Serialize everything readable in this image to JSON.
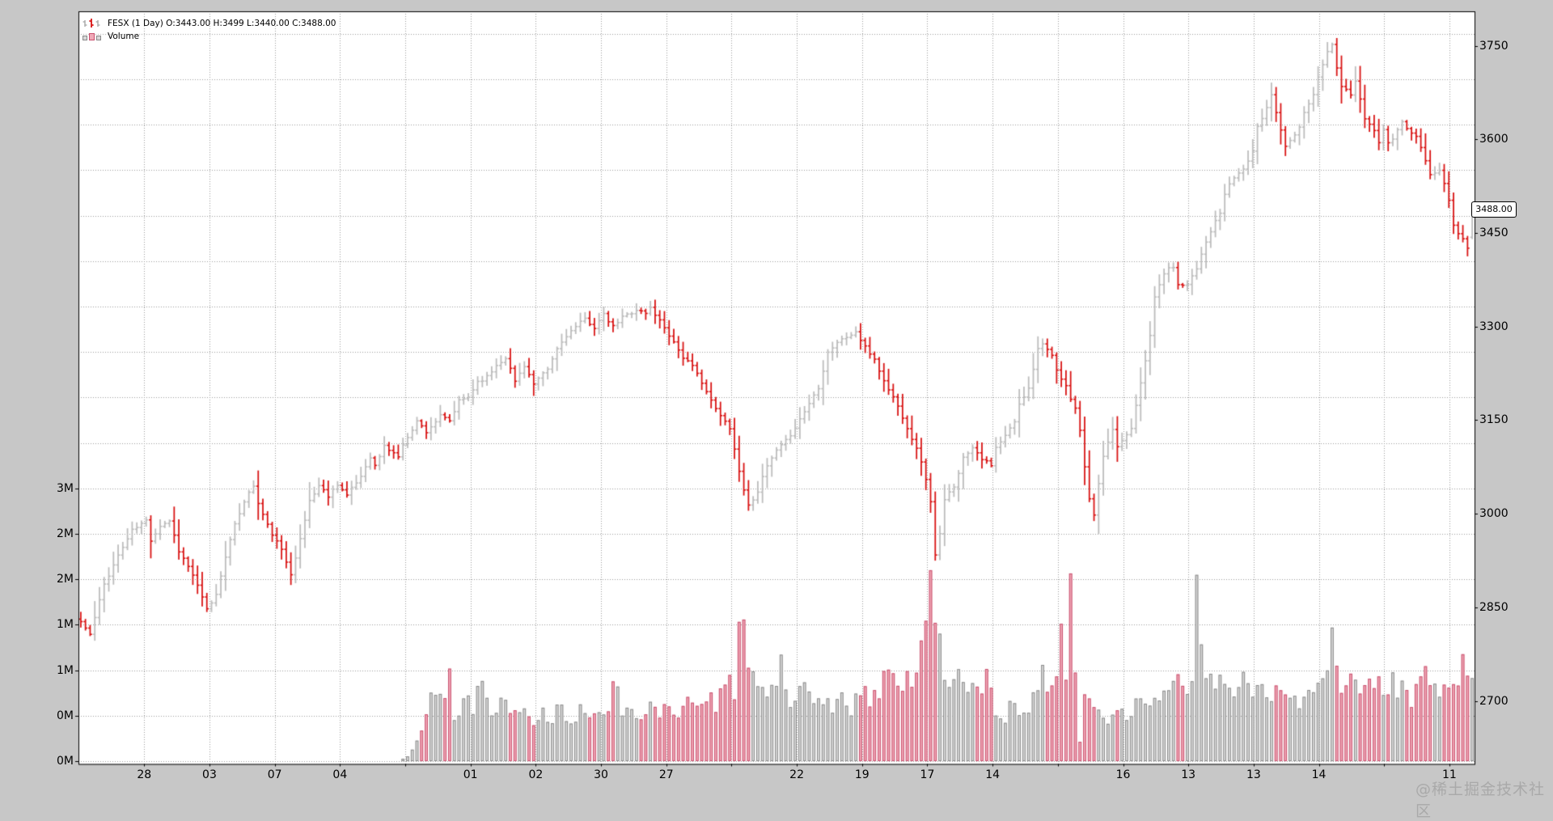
{
  "legend": {
    "series1": "FESX (1 Day) O:3443.00 H:3499 L:3440.00 C:3488.00",
    "series2": "Volume"
  },
  "price_label": "3488.00",
  "watermark": "@稀土掘金技术社区",
  "colors": {
    "page_bg": "#c7c7c7",
    "plot_bg": "#ffffff",
    "plot_border": "#000000",
    "grid": "#9b9b9b",
    "up_bar": "#bdbdbd",
    "down_bar": "#d91414",
    "vol_up_fill": "#d8d8d8",
    "vol_up_stroke": "#8a8a8a",
    "vol_down_fill": "#f0a9b7",
    "vol_down_stroke": "#c9506e",
    "text": "#000000",
    "watermark_text": "#a9a9a9"
  },
  "chart_data": {
    "type": "candlestick",
    "symbol": "FESX",
    "interval": "1 Day",
    "legend_ohlc": {
      "open": 3443.0,
      "high": 3499,
      "low": 3440.0,
      "close": 3488.0
    },
    "last_candle": {
      "open": 3443,
      "high": 3499,
      "low": 3440,
      "close": 3488
    },
    "n_candles": 299,
    "price_axis": {
      "side": "right",
      "ticks": [
        3750,
        3600,
        3450,
        3300,
        3150,
        3000,
        2850,
        2700
      ],
      "current_price": 3488.0
    },
    "volume_axis": {
      "side": "left",
      "values_M": [
        0,
        0.5,
        1,
        1.5,
        2,
        2.5,
        3
      ],
      "tick_labels": [
        "0M",
        "0M",
        "1M",
        "1M",
        "2M",
        "2M",
        "3M"
      ]
    },
    "x_axis": {
      "labels": [
        "28",
        "03",
        "07",
        "04",
        "",
        "01",
        "02",
        "30",
        "27",
        "",
        "22",
        "19",
        "17",
        "14",
        "",
        "16",
        "13",
        "13",
        "14",
        "",
        "11"
      ]
    },
    "close_keypoints": [
      [
        0,
        2827
      ],
      [
        2,
        2806
      ],
      [
        5,
        2887
      ],
      [
        8,
        2933
      ],
      [
        11,
        2973
      ],
      [
        14,
        2989
      ],
      [
        15,
        2958
      ],
      [
        17,
        2981
      ],
      [
        19,
        2989
      ],
      [
        21,
        2941
      ],
      [
        24,
        2902
      ],
      [
        27,
        2846
      ],
      [
        29,
        2870
      ],
      [
        31,
        2933
      ],
      [
        33,
        2981
      ],
      [
        35,
        3021
      ],
      [
        37,
        3045
      ],
      [
        38,
        3016
      ],
      [
        40,
        2981
      ],
      [
        43,
        2941
      ],
      [
        45,
        2905
      ],
      [
        47,
        2958
      ],
      [
        49,
        3021
      ],
      [
        51,
        3045
      ],
      [
        53,
        3029
      ],
      [
        55,
        3048
      ],
      [
        57,
        3029
      ],
      [
        60,
        3060
      ],
      [
        62,
        3092
      ],
      [
        63,
        3076
      ],
      [
        65,
        3108
      ],
      [
        68,
        3092
      ],
      [
        70,
        3124
      ],
      [
        72,
        3148
      ],
      [
        74,
        3132
      ],
      [
        77,
        3156
      ],
      [
        79,
        3148
      ],
      [
        81,
        3180
      ],
      [
        83,
        3187
      ],
      [
        85,
        3212
      ],
      [
        87,
        3219
      ],
      [
        89,
        3238
      ],
      [
        91,
        3251
      ],
      [
        93,
        3212
      ],
      [
        95,
        3238
      ],
      [
        97,
        3207
      ],
      [
        100,
        3231
      ],
      [
        102,
        3264
      ],
      [
        104,
        3286
      ],
      [
        106,
        3299
      ],
      [
        108,
        3312
      ],
      [
        110,
        3299
      ],
      [
        112,
        3318
      ],
      [
        114,
        3299
      ],
      [
        116,
        3315
      ],
      [
        119,
        3327
      ],
      [
        121,
        3321
      ],
      [
        122,
        3330
      ],
      [
        125,
        3299
      ],
      [
        127,
        3275
      ],
      [
        129,
        3251
      ],
      [
        131,
        3235
      ],
      [
        133,
        3212
      ],
      [
        135,
        3180
      ],
      [
        137,
        3156
      ],
      [
        139,
        3139
      ],
      [
        141,
        3068
      ],
      [
        143,
        3012
      ],
      [
        145,
        3037
      ],
      [
        147,
        3076
      ],
      [
        149,
        3100
      ],
      [
        151,
        3116
      ],
      [
        153,
        3139
      ],
      [
        155,
        3164
      ],
      [
        158,
        3203
      ],
      [
        160,
        3259
      ],
      [
        162,
        3275
      ],
      [
        164,
        3283
      ],
      [
        166,
        3291
      ],
      [
        168,
        3266
      ],
      [
        170,
        3248
      ],
      [
        172,
        3212
      ],
      [
        174,
        3187
      ],
      [
        176,
        3156
      ],
      [
        178,
        3121
      ],
      [
        180,
        3085
      ],
      [
        182,
        3021
      ],
      [
        183,
        2933
      ],
      [
        184,
        2966
      ],
      [
        185,
        3021
      ],
      [
        187,
        3045
      ],
      [
        189,
        3089
      ],
      [
        191,
        3108
      ],
      [
        193,
        3089
      ],
      [
        195,
        3076
      ],
      [
        196,
        3105
      ],
      [
        198,
        3124
      ],
      [
        200,
        3148
      ],
      [
        201,
        3174
      ],
      [
        203,
        3203
      ],
      [
        205,
        3264
      ],
      [
        206,
        3275
      ],
      [
        208,
        3251
      ],
      [
        209,
        3228
      ],
      [
        211,
        3203
      ],
      [
        213,
        3169
      ],
      [
        214,
        3132
      ],
      [
        216,
        3021
      ],
      [
        217,
        3000
      ],
      [
        219,
        3092
      ],
      [
        221,
        3132
      ],
      [
        222,
        3108
      ],
      [
        224,
        3127
      ],
      [
        225,
        3139
      ],
      [
        227,
        3212
      ],
      [
        229,
        3283
      ],
      [
        230,
        3347
      ],
      [
        232,
        3386
      ],
      [
        234,
        3397
      ],
      [
        235,
        3365
      ],
      [
        237,
        3370
      ],
      [
        239,
        3393
      ],
      [
        240,
        3418
      ],
      [
        242,
        3454
      ],
      [
        244,
        3481
      ],
      [
        245,
        3512
      ],
      [
        247,
        3539
      ],
      [
        249,
        3552
      ],
      [
        251,
        3581
      ],
      [
        252,
        3618
      ],
      [
        254,
        3651
      ],
      [
        255,
        3672
      ],
      [
        256,
        3645
      ],
      [
        258,
        3588
      ],
      [
        259,
        3601
      ],
      [
        261,
        3618
      ],
      [
        262,
        3645
      ],
      [
        264,
        3672
      ],
      [
        265,
        3698
      ],
      [
        267,
        3740
      ],
      [
        268,
        3751
      ],
      [
        269,
        3715
      ],
      [
        270,
        3683
      ],
      [
        272,
        3672
      ],
      [
        273,
        3692
      ],
      [
        274,
        3667
      ],
      [
        275,
        3635
      ],
      [
        277,
        3613
      ],
      [
        278,
        3597
      ],
      [
        279,
        3613
      ],
      [
        280,
        3592
      ],
      [
        282,
        3613
      ],
      [
        283,
        3629
      ],
      [
        284,
        3616
      ],
      [
        286,
        3603
      ],
      [
        287,
        3584
      ],
      [
        288,
        3566
      ],
      [
        289,
        3545
      ],
      [
        291,
        3549
      ],
      [
        292,
        3528
      ],
      [
        293,
        3505
      ],
      [
        294,
        3461
      ],
      [
        296,
        3441
      ],
      [
        297,
        3424
      ],
      [
        298,
        3488
      ]
    ],
    "volume_keypoints_M": [
      [
        0,
        0
      ],
      [
        68,
        0
      ],
      [
        70,
        0.05
      ],
      [
        71,
        0.12
      ],
      [
        72,
        0.25
      ],
      [
        73,
        0.4
      ],
      [
        74,
        0.55
      ],
      [
        75,
        0.7
      ],
      [
        76,
        0.75
      ],
      [
        78,
        0.6
      ],
      [
        79,
        0.9
      ],
      [
        80,
        0.55
      ],
      [
        82,
        0.65
      ],
      [
        84,
        0.6
      ],
      [
        86,
        1.05
      ],
      [
        87,
        0.6
      ],
      [
        89,
        0.55
      ],
      [
        91,
        0.65
      ],
      [
        93,
        0.5
      ],
      [
        95,
        0.6
      ],
      [
        97,
        0.45
      ],
      [
        99,
        0.55
      ],
      [
        101,
        0.5
      ],
      [
        103,
        0.6
      ],
      [
        105,
        0.45
      ],
      [
        107,
        0.55
      ],
      [
        109,
        0.5
      ],
      [
        111,
        0.6
      ],
      [
        113,
        0.55
      ],
      [
        115,
        0.95
      ],
      [
        116,
        0.55
      ],
      [
        118,
        0.6
      ],
      [
        120,
        0.5
      ],
      [
        122,
        0.65
      ],
      [
        124,
        0.55
      ],
      [
        126,
        0.6
      ],
      [
        128,
        0.5
      ],
      [
        130,
        0.65
      ],
      [
        132,
        0.6
      ],
      [
        134,
        0.7
      ],
      [
        136,
        0.65
      ],
      [
        138,
        0.85
      ],
      [
        140,
        0.8
      ],
      [
        141,
        1.3
      ],
      [
        142,
        1.35
      ],
      [
        143,
        1.15
      ],
      [
        144,
        0.9
      ],
      [
        146,
        0.7
      ],
      [
        148,
        0.8
      ],
      [
        150,
        1.1
      ],
      [
        151,
        0.75
      ],
      [
        153,
        0.65
      ],
      [
        155,
        0.75
      ],
      [
        157,
        0.6
      ],
      [
        159,
        0.7
      ],
      [
        161,
        0.6
      ],
      [
        163,
        0.7
      ],
      [
        165,
        0.6
      ],
      [
        167,
        0.75
      ],
      [
        169,
        0.65
      ],
      [
        171,
        0.8
      ],
      [
        173,
        0.9
      ],
      [
        175,
        0.8
      ],
      [
        177,
        0.95
      ],
      [
        179,
        0.95
      ],
      [
        180,
        1.3
      ],
      [
        181,
        1.75
      ],
      [
        182,
        2.0
      ],
      [
        183,
        1.85
      ],
      [
        184,
        1.35
      ],
      [
        185,
        1.05
      ],
      [
        186,
        0.9
      ],
      [
        188,
        1.15
      ],
      [
        190,
        0.85
      ],
      [
        192,
        0.75
      ],
      [
        194,
        0.9
      ],
      [
        196,
        0.6
      ],
      [
        198,
        0.5
      ],
      [
        200,
        0.65
      ],
      [
        202,
        0.55
      ],
      [
        204,
        0.75
      ],
      [
        206,
        0.9
      ],
      [
        207,
        0.65
      ],
      [
        209,
        0.9
      ],
      [
        210,
        1.55
      ],
      [
        211,
        0.9
      ],
      [
        212,
        2.45
      ],
      [
        213,
        0.9
      ],
      [
        214,
        0.2
      ],
      [
        215,
        0.75
      ],
      [
        216,
        0.6
      ],
      [
        218,
        0.5
      ],
      [
        220,
        0.35
      ],
      [
        222,
        0.6
      ],
      [
        224,
        0.5
      ],
      [
        226,
        0.65
      ],
      [
        228,
        0.55
      ],
      [
        230,
        0.7
      ],
      [
        232,
        0.8
      ],
      [
        234,
        0.9
      ],
      [
        236,
        0.75
      ],
      [
        238,
        0.85
      ],
      [
        239,
        1.95
      ],
      [
        240,
        1.3
      ],
      [
        241,
        0.9
      ],
      [
        243,
        0.8
      ],
      [
        245,
        0.9
      ],
      [
        247,
        0.7
      ],
      [
        249,
        0.85
      ],
      [
        251,
        0.75
      ],
      [
        253,
        0.9
      ],
      [
        255,
        0.8
      ],
      [
        257,
        0.7
      ],
      [
        259,
        0.8
      ],
      [
        261,
        0.7
      ],
      [
        263,
        0.85
      ],
      [
        265,
        0.75
      ],
      [
        267,
        0.85
      ],
      [
        268,
        1.3
      ],
      [
        269,
        0.9
      ],
      [
        271,
        0.8
      ],
      [
        273,
        0.9
      ],
      [
        275,
        0.75
      ],
      [
        277,
        0.85
      ],
      [
        279,
        0.75
      ],
      [
        281,
        0.9
      ],
      [
        283,
        0.8
      ],
      [
        285,
        0.7
      ],
      [
        287,
        0.85
      ],
      [
        289,
        0.95
      ],
      [
        291,
        0.8
      ],
      [
        293,
        0.9
      ],
      [
        295,
        0.85
      ],
      [
        296,
        1.0
      ],
      [
        297,
        0.95
      ],
      [
        298,
        0.9
      ]
    ]
  }
}
